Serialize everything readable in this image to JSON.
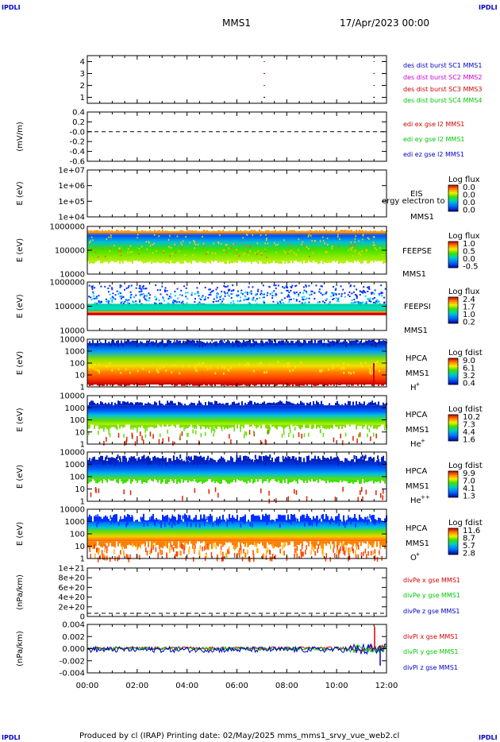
{
  "corner_label": "IPDLI",
  "header": {
    "spacecraft": "MMS1",
    "date": "17/Apr/2023 00:00"
  },
  "footer": {
    "text": "Produced by cl (IRAP)   Printing date: 02/May/2025   mms_mms1_srvy_vue_web2.cl"
  },
  "colors": {
    "red": "#d40000",
    "green": "#00c800",
    "blue": "#0000c8",
    "magenta": "#d000d0"
  },
  "chart_data": [
    {
      "id": "burst",
      "type": "scatter",
      "ylim": [
        0.5,
        4.5
      ],
      "yticks": [
        "4",
        "3",
        "2",
        "1"
      ],
      "series": [
        {
          "name": "des dist burst SC1 MMS1",
          "color": "blue",
          "y": 1,
          "x_hours": [
            7.1,
            11.5
          ]
        },
        {
          "name": "des dist burst SC2 MMS2",
          "color": "magenta",
          "y": 2,
          "x_hours": [
            7.1,
            11.5
          ]
        },
        {
          "name": "des dist burst SC3 MMS3",
          "color": "red",
          "y": 3,
          "x_hours": [
            7.1,
            11.5
          ]
        },
        {
          "name": "des dist burst SC4 MMS4",
          "color": "green",
          "y": 4,
          "x_hours": [
            7.1,
            11.5
          ]
        }
      ]
    },
    {
      "id": "edi",
      "type": "line",
      "ylabel": "(mV/m)",
      "ylim": [
        -0.6,
        0.4
      ],
      "yticks": [
        "0.4",
        "0.2",
        "-0.0",
        "-0.2",
        "-0.4",
        "-0.6"
      ],
      "series": [
        {
          "name": "edi ex gse l2 MMS1",
          "color": "red"
        },
        {
          "name": "edi ey gse l2 MMS1",
          "color": "green"
        },
        {
          "name": "edi ez gse l2 MMS1",
          "color": "blue"
        }
      ]
    },
    {
      "id": "eis",
      "type": "heatmap",
      "ylabel": "E (eV)",
      "yticks": [
        "1e+07",
        "1e+06",
        "1e+05",
        "1e+04"
      ],
      "labels": [
        "EIS",
        "MMS1"
      ],
      "overlay_text": "ergy electron to",
      "colorbar": {
        "title": "Log flux",
        "ticks": [
          "0.0",
          "0.0",
          "0.0",
          "0.0"
        ]
      }
    },
    {
      "id": "feepse",
      "type": "heatmap",
      "ylabel": "E (eV)",
      "yticks": [
        "1000000",
        "100000",
        "10000"
      ],
      "labels": [
        "FEEPSE",
        "MMS1"
      ],
      "colorbar": {
        "title": "Log flux",
        "ticks": [
          "1.0",
          "0.5",
          "0.0",
          "-0.5"
        ]
      }
    },
    {
      "id": "feepsi",
      "type": "heatmap",
      "ylabel": "E (eV)",
      "yticks": [
        "1000000",
        "100000",
        "10000"
      ],
      "labels": [
        "FEEPSI",
        "MMS1"
      ],
      "colorbar": {
        "title": "Log flux",
        "ticks": [
          "2.4",
          "1.7",
          "1.0",
          "0.2"
        ]
      }
    },
    {
      "id": "hpca_h",
      "type": "heatmap",
      "ylabel": "E (eV)",
      "yticks": [
        "10000",
        "1000",
        "100",
        "10",
        "1"
      ],
      "labels": [
        "HPCA",
        "MMS1"
      ],
      "species": "H",
      "species_sup": "+",
      "colorbar": {
        "title": "Log fdist",
        "ticks": [
          "9.0",
          "6.1",
          "3.2",
          "0.4"
        ]
      }
    },
    {
      "id": "hpca_he",
      "type": "heatmap",
      "ylabel": "E (eV)",
      "yticks": [
        "10000",
        "1000",
        "100",
        "10",
        "1"
      ],
      "labels": [
        "HPCA",
        "MMS1"
      ],
      "species": "He",
      "species_sup": "+",
      "colorbar": {
        "title": "Log fdist",
        "ticks": [
          "10.2",
          "7.3",
          "4.4",
          "1.6"
        ]
      }
    },
    {
      "id": "hpca_hepp",
      "type": "heatmap",
      "ylabel": "E (eV)",
      "yticks": [
        "10000",
        "1000",
        "100",
        "10",
        "1"
      ],
      "labels": [
        "HPCA",
        "MMS1"
      ],
      "species": "He",
      "species_sup": "++",
      "colorbar": {
        "title": "Log fdist",
        "ticks": [
          "9.9",
          "7.0",
          "4.1",
          "1.3"
        ]
      }
    },
    {
      "id": "hpca_o",
      "type": "heatmap",
      "ylabel": "E (eV)",
      "yticks": [
        "10000",
        "1000",
        "100",
        "10",
        "1"
      ],
      "labels": [
        "HPCA",
        "MMS1"
      ],
      "species": "O",
      "species_sup": "+",
      "colorbar": {
        "title": "Log fdist",
        "ticks": [
          "11.6",
          "8.7",
          "5.7",
          "2.8"
        ]
      }
    },
    {
      "id": "divpe",
      "type": "line",
      "ylabel": "(nPa/km)",
      "ylim": [
        0,
        1e+21
      ],
      "yticks": [
        "1e+21",
        "8e+20",
        "6e+20",
        "4e+20",
        "2e+20",
        "0"
      ],
      "series": [
        {
          "name": "divPe x gse MMS1",
          "color": "red"
        },
        {
          "name": "divPe y gse MMS1",
          "color": "green"
        },
        {
          "name": "divPe z gse MMS1",
          "color": "blue"
        }
      ]
    },
    {
      "id": "divpi",
      "type": "line",
      "ylabel": "(nPa/km)",
      "ylim": [
        -0.005,
        0.005
      ],
      "yticks": [
        "0.004",
        "0.002",
        "0.000",
        "-0.002",
        "-0.004"
      ],
      "series": [
        {
          "name": "divPi x gse MMS1",
          "color": "red"
        },
        {
          "name": "divPi y gse MMS1",
          "color": "green"
        },
        {
          "name": "divPi z gse MMS1",
          "color": "blue"
        }
      ]
    }
  ],
  "xaxis": {
    "ticks": [
      "00:00",
      "02:00",
      "04:00",
      "06:00",
      "08:00",
      "10:00",
      "12:00"
    ],
    "xlim_hours": [
      0,
      12
    ]
  }
}
